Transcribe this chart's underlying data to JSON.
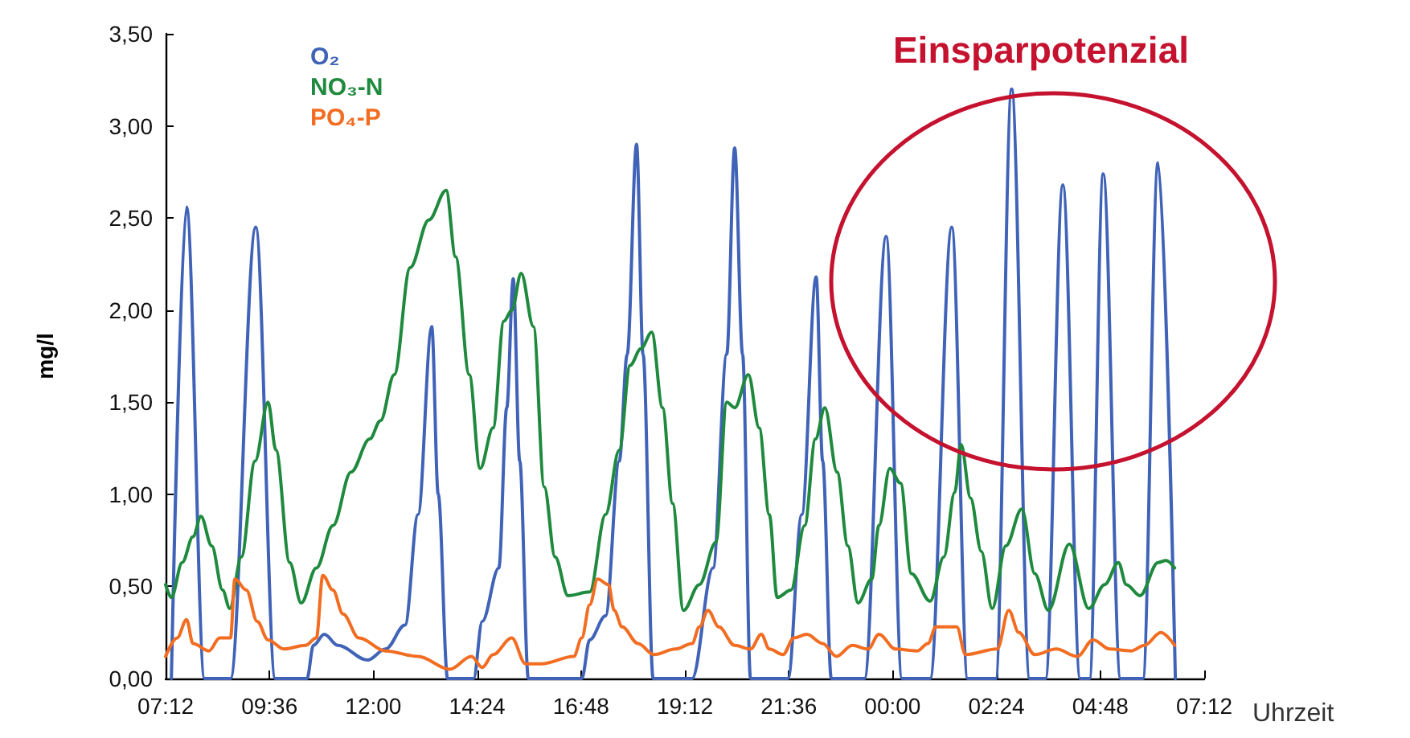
{
  "chart_data": {
    "type": "line",
    "xlabel": "Uhrzeit",
    "ylabel": "mg/l",
    "annotations": [
      "Einsparpotenzial"
    ],
    "xlim": [
      "2000-01-01T07:12",
      "2000-01-02T07:12"
    ],
    "xticks": [
      {
        "value": "2000-01-01T07:12",
        "label": "07:12"
      },
      {
        "value": "2000-01-01T09:36",
        "label": "09:36"
      },
      {
        "value": "2000-01-01T12:00",
        "label": "12:00"
      },
      {
        "value": "2000-01-01T14:24",
        "label": "14:24"
      },
      {
        "value": "2000-01-01T16:48",
        "label": "16:48"
      },
      {
        "value": "2000-01-01T19:12",
        "label": "19:12"
      },
      {
        "value": "2000-01-01T21:36",
        "label": "21:36"
      },
      {
        "value": "2000-01-02T00:00",
        "label": "00:00"
      },
      {
        "value": "2000-01-02T02:24",
        "label": "02:24"
      },
      {
        "value": "2000-01-02T04:48",
        "label": "04:48"
      },
      {
        "value": "2000-01-02T07:12",
        "label": "07:12"
      }
    ],
    "ylim": [
      0,
      3.5
    ],
    "yticks": [
      {
        "value": 0,
        "label": "0,00"
      },
      {
        "value": 0.5,
        "label": "0,50"
      },
      {
        "value": 1,
        "label": "1,00"
      },
      {
        "value": 1.5,
        "label": "1,50"
      },
      {
        "value": 2,
        "label": "2,00"
      },
      {
        "value": 2.5,
        "label": "2,50"
      },
      {
        "value": 3,
        "label": "3,00"
      },
      {
        "value": 3.5,
        "label": "3,50"
      }
    ],
    "legend": "top left",
    "marker": "none",
    "line_style": "solid",
    "series": [
      {
        "name": "O₂",
        "color": "#4063b8",
        "x": [
          "2000-01-01T07:20",
          "2000-01-01T07:41",
          "2000-01-01T08:06",
          "2000-01-01T08:42",
          "2000-01-01T09:17",
          "2000-01-01T09:44",
          "2000-01-01T10:28",
          "2000-01-01T10:37",
          "2000-01-01T10:52",
          "2000-01-01T11:11",
          "2000-01-01T11:52",
          "2000-01-01T12:17",
          "2000-01-01T12:44",
          "2000-01-01T13:02",
          "2000-01-01T13:21",
          "2000-01-01T13:30",
          "2000-01-01T13:43",
          "2000-01-01T14:19",
          "2000-01-01T14:31",
          "2000-01-01T14:54",
          "2000-01-01T15:05",
          "2000-01-01T15:14",
          "2000-01-01T15:23",
          "2000-01-01T15:35",
          "2000-01-01T16:49",
          "2000-01-01T17:00",
          "2000-01-01T17:22",
          "2000-01-01T17:41",
          "2000-01-01T17:52",
          "2000-01-01T18:05",
          "2000-01-01T18:14",
          "2000-01-01T18:28",
          "2000-01-01T19:22",
          "2000-01-01T19:51",
          "2000-01-01T20:10",
          "2000-01-01T20:21",
          "2000-01-01T20:32",
          "2000-01-01T20:43",
          "2000-01-01T21:35",
          "2000-01-01T21:54",
          "2000-01-01T22:14",
          "2000-01-01T22:23",
          "2000-01-01T22:35",
          "2000-01-01T23:21",
          "2000-01-01T23:51",
          "2000-01-02T00:13",
          "2000-01-02T00:52",
          "2000-01-02T01:22",
          "2000-01-02T01:44",
          "2000-01-02T02:23",
          "2000-01-02T02:45",
          "2000-01-02T03:10",
          "2000-01-02T03:32",
          "2000-01-02T03:56",
          "2000-01-02T04:20",
          "2000-01-02T04:33",
          "2000-01-02T04:52",
          "2000-01-02T05:16",
          "2000-01-02T05:47",
          "2000-01-02T06:08",
          "2000-01-02T06:32"
        ],
        "values": [
          0,
          2.56,
          0,
          0,
          2.45,
          0,
          0,
          0.18,
          0.24,
          0.18,
          0.1,
          0.16,
          0.29,
          0.89,
          1.91,
          1.0,
          0,
          0,
          0.31,
          0.6,
          1.47,
          2.17,
          1.18,
          0,
          0,
          0.21,
          0.34,
          1.18,
          1.76,
          2.9,
          1.76,
          0,
          0,
          0.6,
          1.76,
          2.88,
          1.76,
          0,
          0,
          0.89,
          2.18,
          1.18,
          0,
          0,
          2.4,
          0,
          0,
          2.45,
          0,
          0,
          3.2,
          0,
          0,
          2.68,
          0,
          0,
          2.74,
          0,
          0,
          2.8,
          0
        ]
      },
      {
        "name": "NO₃-N",
        "color": "#1f8a3e",
        "x": [
          "2000-01-01T07:12",
          "2000-01-01T07:20",
          "2000-01-01T07:35",
          "2000-01-01T07:50",
          "2000-01-01T08:01",
          "2000-01-01T08:16",
          "2000-01-01T08:31",
          "2000-01-01T08:41",
          "2000-01-01T08:57",
          "2000-01-01T09:16",
          "2000-01-01T09:34",
          "2000-01-01T09:45",
          "2000-01-01T10:04",
          "2000-01-01T10:20",
          "2000-01-01T10:41",
          "2000-01-01T11:04",
          "2000-01-01T11:29",
          "2000-01-01T11:55",
          "2000-01-01T12:10",
          "2000-01-01T12:29",
          "2000-01-01T12:51",
          "2000-01-01T13:17",
          "2000-01-01T13:41",
          "2000-01-01T13:54",
          "2000-01-01T14:13",
          "2000-01-01T14:28",
          "2000-01-01T14:46",
          "2000-01-01T15:01",
          "2000-01-01T15:12",
          "2000-01-01T15:25",
          "2000-01-01T15:42",
          "2000-01-01T15:57",
          "2000-01-01T16:12",
          "2000-01-01T16:30",
          "2000-01-01T17:00",
          "2000-01-01T17:22",
          "2000-01-01T17:41",
          "2000-01-01T17:56",
          "2000-01-01T18:11",
          "2000-01-01T18:26",
          "2000-01-01T18:41",
          "2000-01-01T18:55",
          "2000-01-01T19:10",
          "2000-01-01T19:32",
          "2000-01-01T19:55",
          "2000-01-01T20:10",
          "2000-01-01T20:21",
          "2000-01-01T20:40",
          "2000-01-01T20:55",
          "2000-01-01T21:09",
          "2000-01-01T21:20",
          "2000-01-01T21:39",
          "2000-01-01T21:58",
          "2000-01-01T22:13",
          "2000-01-01T22:26",
          "2000-01-01T22:43",
          "2000-01-01T22:58",
          "2000-01-01T23:12",
          "2000-01-01T23:31",
          "2000-01-01T23:41",
          "2000-01-01T23:56",
          "2000-01-02T00:11",
          "2000-01-02T00:26",
          "2000-01-02T00:52",
          "2000-01-02T01:11",
          "2000-01-02T01:26",
          "2000-01-02T01:35",
          "2000-01-02T01:48",
          "2000-01-02T02:03",
          "2000-01-02T02:18",
          "2000-01-02T02:37",
          "2000-01-02T02:59",
          "2000-01-02T03:17",
          "2000-01-02T03:36",
          "2000-01-02T04:05",
          "2000-01-02T04:32",
          "2000-01-02T04:54",
          "2000-01-02T05:13",
          "2000-01-02T05:24",
          "2000-01-02T05:43",
          "2000-01-02T06:08",
          "2000-01-02T06:19",
          "2000-01-02T06:31"
        ],
        "values": [
          0.51,
          0.44,
          0.63,
          0.77,
          0.88,
          0.72,
          0.48,
          0.38,
          0.66,
          1.18,
          1.5,
          1.24,
          0.63,
          0.41,
          0.6,
          0.83,
          1.12,
          1.3,
          1.4,
          1.65,
          2.23,
          2.49,
          2.65,
          2.29,
          1.65,
          1.14,
          1.36,
          1.94,
          2.0,
          2.2,
          1.91,
          1.04,
          0.66,
          0.45,
          0.47,
          0.89,
          1.24,
          1.7,
          1.79,
          1.88,
          1.47,
          0.95,
          0.37,
          0.51,
          0.74,
          1.5,
          1.47,
          1.65,
          1.36,
          0.89,
          0.44,
          0.48,
          0.83,
          1.3,
          1.47,
          1.12,
          0.72,
          0.41,
          0.54,
          0.83,
          1.14,
          1.06,
          0.57,
          0.42,
          0.66,
          1.01,
          1.27,
          0.98,
          0.69,
          0.38,
          0.72,
          0.92,
          0.57,
          0.37,
          0.73,
          0.38,
          0.51,
          0.63,
          0.51,
          0.45,
          0.63,
          0.64,
          0.6
        ]
      },
      {
        "name": "PO₄-P",
        "color": "#f26d21",
        "x": [
          "2000-01-01T07:12",
          "2000-01-01T07:28",
          "2000-01-01T07:41",
          "2000-01-01T07:50",
          "2000-01-01T08:12",
          "2000-01-01T08:27",
          "2000-01-01T08:42",
          "2000-01-01T08:48",
          "2000-01-01T09:04",
          "2000-01-01T09:19",
          "2000-01-01T09:34",
          "2000-01-01T09:56",
          "2000-01-01T10:26",
          "2000-01-01T10:41",
          "2000-01-01T10:50",
          "2000-01-01T11:04",
          "2000-01-01T11:18",
          "2000-01-01T11:40",
          "2000-01-01T12:17",
          "2000-01-01T13:02",
          "2000-01-01T13:46",
          "2000-01-01T14:16",
          "2000-01-01T14:31",
          "2000-01-01T14:46",
          "2000-01-01T15:12",
          "2000-01-01T15:31",
          "2000-01-01T15:53",
          "2000-01-01T16:38",
          "2000-01-01T16:49",
          "2000-01-01T17:00",
          "2000-01-01T17:11",
          "2000-01-01T17:26",
          "2000-01-01T17:34",
          "2000-01-01T17:45",
          "2000-01-01T18:07",
          "2000-01-01T18:29",
          "2000-01-01T18:59",
          "2000-01-01T19:22",
          "2000-01-01T19:32",
          "2000-01-01T19:44",
          "2000-01-01T19:59",
          "2000-01-01T20:21",
          "2000-01-01T20:43",
          "2000-01-01T20:58",
          "2000-01-01T21:09",
          "2000-01-01T21:28",
          "2000-01-01T21:43",
          "2000-01-01T22:01",
          "2000-01-01T22:23",
          "2000-01-01T22:42",
          "2000-01-01T23:04",
          "2000-01-01T23:26",
          "2000-01-01T23:41",
          "2000-01-02T00:04",
          "2000-01-02T00:34",
          "2000-01-02T00:49",
          "2000-01-02T01:00",
          "2000-01-02T01:29",
          "2000-01-02T01:41",
          "2000-01-02T02:25",
          "2000-01-02T02:41",
          "2000-01-02T02:55",
          "2000-01-02T03:17",
          "2000-01-02T03:47",
          "2000-01-02T04:16",
          "2000-01-02T04:38",
          "2000-01-02T05:01",
          "2000-01-02T05:31",
          "2000-01-02T05:49",
          "2000-01-02T06:12",
          "2000-01-02T06:31"
        ],
        "values": [
          0.12,
          0.22,
          0.32,
          0.19,
          0.15,
          0.22,
          0.22,
          0.54,
          0.48,
          0.31,
          0.21,
          0.16,
          0.18,
          0.22,
          0.56,
          0.48,
          0.35,
          0.22,
          0.15,
          0.12,
          0.05,
          0.12,
          0.06,
          0.13,
          0.22,
          0.08,
          0.08,
          0.12,
          0.22,
          0.4,
          0.54,
          0.51,
          0.37,
          0.28,
          0.19,
          0.13,
          0.16,
          0.19,
          0.28,
          0.37,
          0.28,
          0.18,
          0.16,
          0.24,
          0.16,
          0.13,
          0.22,
          0.24,
          0.19,
          0.12,
          0.18,
          0.16,
          0.24,
          0.16,
          0.15,
          0.19,
          0.28,
          0.28,
          0.13,
          0.16,
          0.37,
          0.25,
          0.13,
          0.16,
          0.12,
          0.21,
          0.16,
          0.15,
          0.18,
          0.25,
          0.18
        ]
      }
    ]
  }
}
